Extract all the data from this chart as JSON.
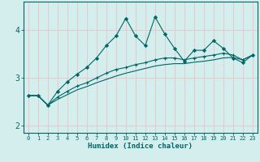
{
  "xlabel": "Humidex (Indice chaleur)",
  "bg_color": "#d4eeee",
  "grid_color": "#e8c8c8",
  "line_color": "#006666",
  "xlim": [
    -0.5,
    23.5
  ],
  "ylim": [
    1.85,
    4.6
  ],
  "x": [
    0,
    1,
    2,
    3,
    4,
    5,
    6,
    7,
    8,
    9,
    10,
    11,
    12,
    13,
    14,
    15,
    16,
    17,
    18,
    19,
    20,
    21,
    22,
    23
  ],
  "line1": [
    2.63,
    2.63,
    2.43,
    2.72,
    2.92,
    3.08,
    3.22,
    3.42,
    3.68,
    3.88,
    4.25,
    3.88,
    3.68,
    4.28,
    3.92,
    3.62,
    3.35,
    3.58,
    3.58,
    3.78,
    3.62,
    3.42,
    3.32,
    3.48
  ],
  "line2": [
    2.63,
    2.63,
    2.43,
    2.6,
    2.72,
    2.83,
    2.9,
    3.0,
    3.1,
    3.18,
    3.22,
    3.28,
    3.32,
    3.38,
    3.42,
    3.42,
    3.38,
    3.42,
    3.45,
    3.48,
    3.52,
    3.48,
    3.38,
    3.48
  ],
  "line3": [
    2.63,
    2.63,
    2.43,
    2.55,
    2.65,
    2.75,
    2.82,
    2.9,
    2.97,
    3.04,
    3.1,
    3.15,
    3.2,
    3.25,
    3.28,
    3.3,
    3.3,
    3.33,
    3.35,
    3.38,
    3.42,
    3.43,
    3.38,
    3.48
  ],
  "xtick_labels": [
    "0",
    "1",
    "2",
    "3",
    "4",
    "5",
    "6",
    "7",
    "8",
    "9",
    "10",
    "11",
    "12",
    "13",
    "14",
    "15",
    "16",
    "17",
    "18",
    "19",
    "20",
    "21",
    "22",
    "23"
  ],
  "ytick_positions": [
    2,
    3,
    4
  ],
  "ytick_labels": [
    "2",
    "3",
    "4"
  ]
}
